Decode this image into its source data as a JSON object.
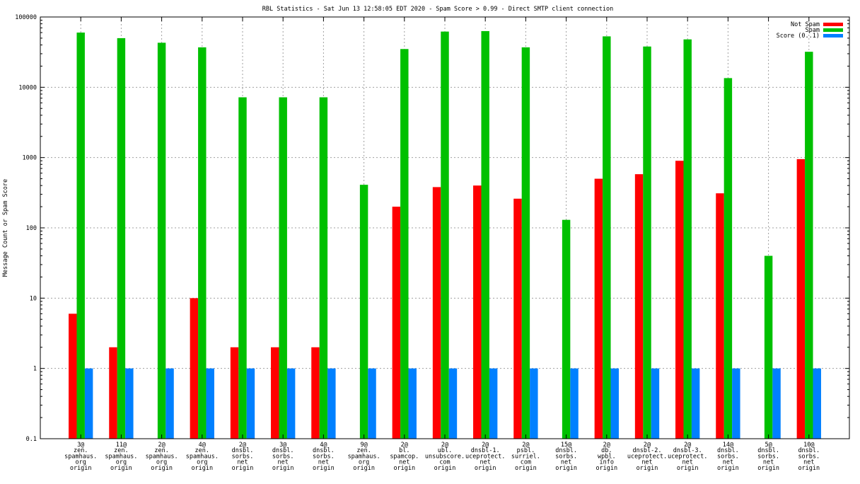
{
  "chart_data": {
    "type": "bar",
    "title": "RBL Statistics - Sat Jun 13 12:58:05 EDT 2020 - Spam Score > 0.99 - Direct SMTP client connection",
    "ylabel": "Message Count or Spam Score",
    "xlabel": "",
    "yscale": "log",
    "ylim": [
      0.1,
      100000
    ],
    "yticks": [
      "0.1",
      "1",
      "10",
      "100",
      "1000",
      "10000",
      "100000"
    ],
    "grid": true,
    "legend_position": "top-right",
    "categories": [
      [
        "3@",
        "zen.",
        "spamhaus.",
        "org",
        "origin"
      ],
      [
        "11@",
        "zen.",
        "spamhaus.",
        "org",
        "origin"
      ],
      [
        "2@",
        "zen.",
        "spamhaus.",
        "org",
        "origin"
      ],
      [
        "4@",
        "zen.",
        "spamhaus.",
        "org",
        "origin"
      ],
      [
        "2@",
        "dnsbl.",
        "sorbs.",
        "net",
        "origin"
      ],
      [
        "3@",
        "dnsbl.",
        "sorbs.",
        "net",
        "origin"
      ],
      [
        "4@",
        "dnsbl.",
        "sorbs.",
        "net",
        "origin"
      ],
      [
        "9@",
        "zen.",
        "spamhaus.",
        "org",
        "origin"
      ],
      [
        "2@",
        "bl.",
        "spamcop.",
        "net",
        "origin"
      ],
      [
        "2@",
        "ubl.",
        "unsubscore.",
        "com",
        "origin"
      ],
      [
        "2@",
        "dnsbl-1.",
        "uceprotect.",
        "net",
        "origin"
      ],
      [
        "2@",
        "psbl.",
        "surriel.",
        "com",
        "origin"
      ],
      [
        "15@",
        "dnsbl.",
        "sorbs.",
        "net",
        "origin"
      ],
      [
        "2@",
        "db.",
        "wpbl.",
        "info",
        "origin"
      ],
      [
        "2@",
        "dnsbl-2.",
        "uceprotect.",
        "net",
        "origin"
      ],
      [
        "2@",
        "dnsbl-3.",
        "uceprotect.",
        "net",
        "origin"
      ],
      [
        "14@",
        "dnsbl.",
        "sorbs.",
        "net",
        "origin"
      ],
      [
        "5@",
        "dnsbl.",
        "sorbs.",
        "net",
        "origin"
      ],
      [
        "10@",
        "dnsbl.",
        "sorbs.",
        "net",
        "origin"
      ]
    ],
    "series": [
      {
        "name": "Not Spam",
        "color": "#ff0000",
        "values": [
          6,
          2,
          null,
          10,
          2,
          2,
          2,
          null,
          200,
          380,
          400,
          260,
          null,
          500,
          580,
          900,
          310,
          null,
          950
        ]
      },
      {
        "name": "Spam",
        "color": "#00c000",
        "values": [
          60000,
          50000,
          43000,
          37000,
          7200,
          7200,
          7200,
          410,
          35000,
          62000,
          63000,
          37000,
          130,
          53000,
          38000,
          48000,
          13500,
          40,
          32000
        ]
      },
      {
        "name": "Score (0..1)",
        "color": "#0080ff",
        "values": [
          1,
          1,
          1,
          1,
          1,
          1,
          1,
          1,
          1,
          1,
          1,
          1,
          1,
          1,
          1,
          1,
          1,
          1,
          1
        ]
      }
    ]
  }
}
